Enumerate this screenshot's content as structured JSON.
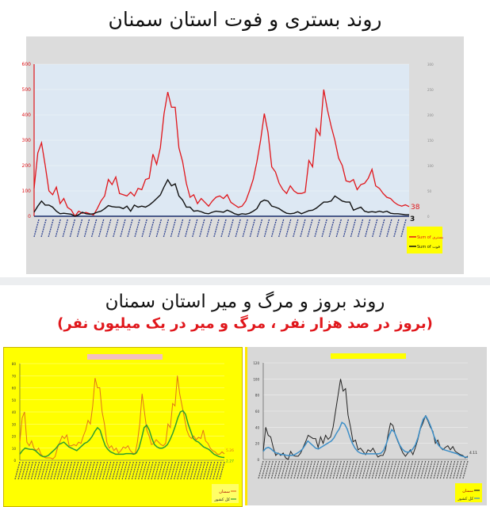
{
  "titles": {
    "main": "روند بستری و فوت استان سمنان",
    "second": "روند بروز و مرگ و میر استان سمنان",
    "second_sub": "(بروز در صد هزار نفر ، مرگ و میر در یک میلیون نفر)"
  },
  "chart_data": [
    {
      "type": "line",
      "colors": {
        "plot_bg": "#dde8f3",
        "frame": "#dcdcdc",
        "red": "#e0161b",
        "black": "#111111"
      },
      "left_ylim": [
        0,
        600
      ],
      "left_ticks": [
        0,
        100,
        200,
        300,
        400,
        500,
        600
      ],
      "right_ylim": [
        0,
        300
      ],
      "right_ticks": [
        0,
        50,
        100,
        150,
        200,
        250,
        300
      ],
      "grid": true,
      "legend": "right",
      "end_labels": {
        "red": "38",
        "black": "3"
      },
      "series": [
        {
          "name": "Sum of بستری",
          "axis": "left",
          "color": "#e0161b",
          "values": [
            110,
            250,
            290,
            200,
            100,
            85,
            115,
            50,
            70,
            35,
            25,
            0,
            20,
            12,
            15,
            10,
            5,
            30,
            60,
            80,
            145,
            125,
            155,
            90,
            85,
            80,
            95,
            80,
            110,
            105,
            145,
            150,
            245,
            205,
            270,
            405,
            490,
            430,
            430,
            270,
            215,
            130,
            75,
            85,
            50,
            70,
            55,
            40,
            60,
            75,
            80,
            70,
            85,
            55,
            45,
            35,
            40,
            60,
            100,
            145,
            215,
            300,
            405,
            330,
            195,
            175,
            130,
            105,
            90,
            120,
            100,
            90,
            90,
            95,
            220,
            195,
            345,
            320,
            500,
            420,
            355,
            300,
            230,
            200,
            140,
            135,
            145,
            105,
            125,
            130,
            150,
            185,
            120,
            110,
            90,
            75,
            70,
            55,
            45,
            40,
            45,
            38
          ]
        },
        {
          "name": "Sum of فوت",
          "axis": "right",
          "color": "#111111",
          "values": [
            8,
            20,
            30,
            22,
            22,
            18,
            10,
            5,
            6,
            5,
            4,
            0,
            3,
            8,
            5,
            4,
            5,
            8,
            10,
            15,
            21,
            19,
            18,
            18,
            15,
            20,
            10,
            22,
            18,
            20,
            18,
            22,
            28,
            35,
            42,
            58,
            72,
            60,
            64,
            40,
            32,
            18,
            18,
            10,
            11,
            9,
            6,
            5,
            8,
            10,
            9,
            8,
            12,
            9,
            5,
            3,
            5,
            4,
            6,
            10,
            15,
            28,
            32,
            30,
            20,
            18,
            15,
            10,
            6,
            5,
            6,
            9,
            5,
            8,
            11,
            12,
            16,
            22,
            28,
            28,
            30,
            40,
            35,
            30,
            28,
            28,
            12,
            15,
            18,
            10,
            8,
            9,
            8,
            10,
            8,
            10,
            6,
            5,
            5,
            4,
            3,
            3
          ]
        }
      ]
    },
    {
      "type": "line",
      "colors": {
        "bg": "#ffff00",
        "red": "#e2731a",
        "green": "#2e9e2e"
      },
      "ylim": [
        0,
        80
      ],
      "ticks": [
        0,
        10,
        20,
        30,
        40,
        50,
        60,
        70,
        80
      ],
      "end_labels": {
        "red": "5.26",
        "green": "2.27"
      },
      "legend": "bottom-right",
      "series": [
        {
          "name": "سمنان",
          "color": "#e2731a",
          "values": [
            15,
            35,
            40,
            15,
            12,
            16,
            10,
            8,
            10,
            5,
            3,
            2,
            2,
            2,
            1,
            3,
            10,
            15,
            20,
            18,
            21,
            12,
            12,
            13,
            12,
            15,
            14,
            20,
            25,
            33,
            30,
            45,
            68,
            60,
            60,
            40,
            30,
            15,
            10,
            12,
            8,
            10,
            6,
            8,
            11,
            10,
            12,
            8,
            6,
            5,
            15,
            30,
            55,
            40,
            25,
            20,
            13,
            14,
            17,
            15,
            13,
            12,
            14,
            30,
            27,
            47,
            45,
            70,
            55,
            45,
            35,
            25,
            20,
            18,
            20,
            17,
            19,
            18,
            25,
            16,
            14,
            10,
            8,
            7,
            5,
            5,
            7,
            5.26
          ]
        },
        {
          "name": "کل کشور",
          "color": "#2e9e2e",
          "values": [
            5,
            8,
            10,
            9.5,
            9,
            9,
            8,
            6,
            4,
            3,
            3,
            4,
            6,
            8,
            10,
            13,
            14,
            15,
            13,
            11,
            10,
            9,
            8,
            10,
            12,
            14,
            15,
            17,
            20,
            24,
            27,
            25,
            18,
            12,
            9,
            7,
            6,
            5,
            5,
            5,
            5,
            5.5,
            5.5,
            5.5,
            5,
            6,
            10,
            18,
            27,
            29,
            25,
            18,
            13,
            11,
            10,
            10,
            11,
            13,
            17,
            22,
            28,
            35,
            40,
            41,
            38,
            30,
            24,
            18,
            16,
            15,
            13,
            11,
            10,
            9,
            7,
            5,
            4,
            3,
            2.5,
            2.27
          ]
        }
      ]
    },
    {
      "type": "line",
      "colors": {
        "bg": "#d8d8d8",
        "black": "#222222",
        "blue": "#3d8fc8"
      },
      "ylim": [
        0,
        120
      ],
      "ticks": [
        0,
        20,
        40,
        60,
        80,
        100,
        120
      ],
      "end_labels": {
        "black": "4.11"
      },
      "legend": "bottom-right",
      "series": [
        {
          "name": "سمنان",
          "color": "#222222",
          "values": [
            10,
            40,
            30,
            28,
            15,
            5,
            8,
            5,
            8,
            2,
            0,
            10,
            5,
            4,
            4,
            8,
            15,
            22,
            30,
            28,
            26,
            26,
            15,
            28,
            20,
            30,
            25,
            28,
            40,
            60,
            80,
            100,
            85,
            88,
            55,
            40,
            22,
            24,
            12,
            14,
            10,
            6,
            12,
            10,
            14,
            8,
            3,
            5,
            5,
            12,
            30,
            45,
            42,
            30,
            22,
            15,
            8,
            4,
            8,
            12,
            6,
            15,
            25,
            38,
            45,
            54,
            48,
            40,
            35,
            20,
            24,
            15,
            12,
            15,
            17,
            12,
            16,
            10,
            8,
            6,
            5,
            2,
            4.11
          ]
        },
        {
          "name": "کل کشور",
          "color": "#3d8fc8",
          "values": [
            10,
            14,
            15,
            13,
            10,
            8,
            7,
            6,
            6,
            5,
            5,
            5,
            6,
            8,
            10,
            13,
            18,
            23,
            20,
            17,
            14,
            13,
            15,
            17,
            19,
            21,
            23,
            27,
            33,
            38,
            46,
            44,
            38,
            28,
            20,
            14,
            10,
            8,
            7,
            7,
            7,
            7,
            7,
            7,
            7,
            8,
            12,
            20,
            30,
            37,
            34,
            26,
            18,
            13,
            10,
            9,
            10,
            13,
            18,
            27,
            40,
            50,
            54,
            48,
            40,
            30,
            22,
            17,
            14,
            12,
            11,
            10,
            9,
            8,
            7,
            5,
            4,
            3,
            2.5
          ]
        }
      ]
    }
  ]
}
